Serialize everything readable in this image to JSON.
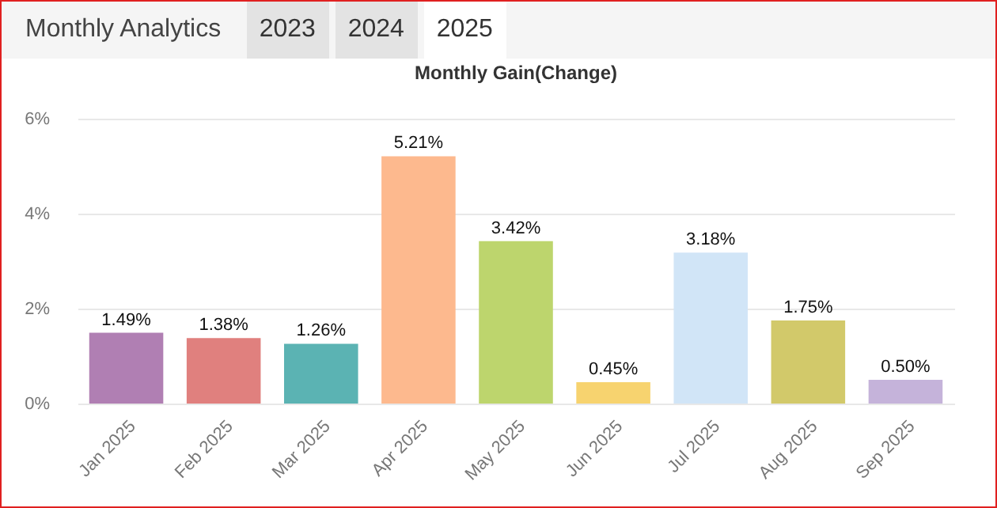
{
  "chart_data": {
    "type": "bar",
    "title": "Monthly Analytics",
    "subtitle": "Monthly Gain(Change)",
    "annotations": [
      "2023",
      "2024",
      "2025"
    ],
    "categories": [
      "Jan 2025",
      "Feb 2025",
      "Mar 2025",
      "Apr 2025",
      "May 2025",
      "Jun 2025",
      "Jul 2025",
      "Aug 2025",
      "Sep 2025"
    ],
    "values": [
      1.49,
      1.38,
      1.26,
      5.21,
      3.42,
      0.45,
      3.18,
      1.75,
      0.5
    ],
    "colors": [
      "#b07fb3",
      "#e0807e",
      "#5bb3b3",
      "#fdb98e",
      "#bdd56d",
      "#f7d36f",
      "#d1e5f7",
      "#d2c96a",
      "#c5b3da"
    ],
    "value_labels": [
      "1.49%",
      "1.38%",
      "1.26%",
      "5.21%",
      "3.42%",
      "0.45%",
      "3.18%",
      "1.75%",
      "0.50%"
    ],
    "ylim": [
      0,
      6
    ],
    "yticks": [
      {
        "value": 0,
        "label": "0%"
      },
      {
        "value": 2,
        "label": "2%"
      },
      {
        "value": 4,
        "label": "4%"
      },
      {
        "value": 6,
        "label": "6%"
      }
    ],
    "grid": "y"
  }
}
